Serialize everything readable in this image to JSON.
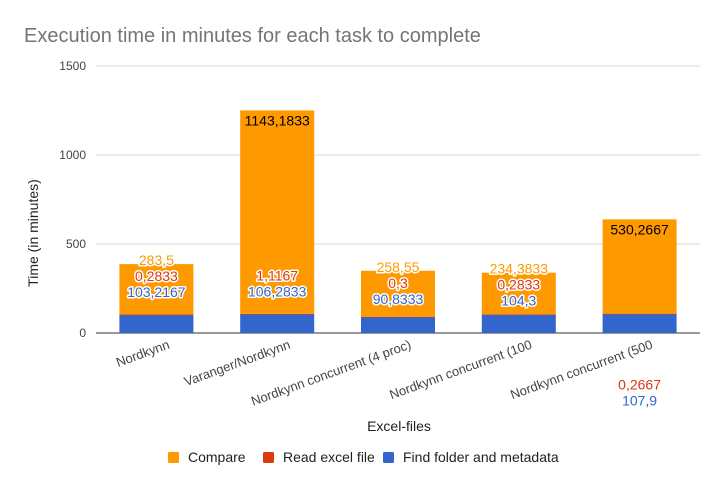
{
  "chart_data": {
    "type": "bar",
    "stacked": true,
    "title": "Execution time in minutes for each task to complete",
    "xlabel": "Excel-files",
    "ylabel": "Time (in minutes)",
    "ylim": [
      0,
      1500
    ],
    "yticks": [
      0,
      500,
      1000,
      1500
    ],
    "grid": true,
    "legend_position": "bottom",
    "categories": [
      "Nordkynn",
      "Varanger/Nordkynn",
      "Nordkynn concurrent (4 proc)",
      "Nordkynn concurrent (100",
      "Nordkynn concurrent (500"
    ],
    "series": [
      {
        "name": "Find folder and metadata",
        "color": "#3366cc",
        "values": [
          103.2167,
          106.2833,
          90.8333,
          104.3,
          107.9
        ],
        "labels": [
          "103,2167",
          "106,2833",
          "90,8333",
          "104,3",
          "107,9"
        ]
      },
      {
        "name": "Read excel file",
        "color": "#dc3912",
        "values": [
          0.2833,
          1.1167,
          0.3,
          0.2833,
          0.2667
        ],
        "labels": [
          "0,2833",
          "1,1167",
          "0,3",
          "0,2833",
          "0,2667"
        ]
      },
      {
        "name": "Compare",
        "color": "#ff9900",
        "values": [
          283.5,
          1143.1833,
          258.55,
          234.3833,
          530.2667
        ],
        "labels": [
          "283,5",
          "1143,1833",
          "258,55",
          "234,3833",
          "530,2667"
        ]
      }
    ]
  }
}
